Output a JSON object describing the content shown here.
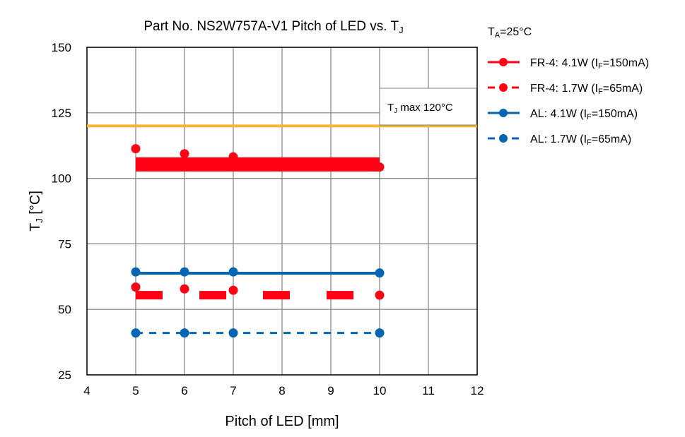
{
  "chart_data": {
    "type": "line",
    "title": {
      "main": "Part No. NS2W757A-V1 Pitch of LED vs. T",
      "sub": "J"
    },
    "xlabel": "Pitch of LED [mm]",
    "ylabel": {
      "main": "T",
      "sub": "J",
      "unit": " [°C]"
    },
    "xlim": [
      4,
      12
    ],
    "ylim": [
      25,
      150
    ],
    "xticks": [
      "4",
      "5",
      "6",
      "7",
      "8",
      "9",
      "10",
      "11",
      "12"
    ],
    "yticks": [
      "25",
      "50",
      "75",
      "100",
      "125",
      "150"
    ],
    "grid": true,
    "legend_position": "right",
    "ambient": {
      "main": "T",
      "sub": "A",
      "rest": "=25°C"
    },
    "tj_max": {
      "value": 120,
      "label_main": "T",
      "label_sub": "J",
      "label_rest": " max 120°C",
      "color": "#F5B731"
    },
    "series": [
      {
        "name": "FR-4: 4.1W (IF=150mA)",
        "legend_main": "FR-4: 4.1W (I",
        "legend_sub": "F",
        "legend_rest": "=150mA)",
        "color": "#FF0015",
        "dashed": false,
        "x": [
          5,
          6,
          7,
          10
        ],
        "y": [
          111.3,
          109.4,
          108.2,
          104.3
        ],
        "line_level": 105.3
      },
      {
        "name": "FR-4: 1.7W (IF=65mA)",
        "legend_main": "FR-4: 1.7W (I",
        "legend_sub": "F",
        "legend_rest": "=65mA)",
        "color": "#FF0015",
        "dashed": true,
        "x": [
          5,
          6,
          7,
          10
        ],
        "y": [
          58.5,
          57.8,
          57.3,
          55.4
        ],
        "line_level": 55.4
      },
      {
        "name": "AL: 4.1W (IF=150mA)",
        "legend_main": "AL: 4.1W (I",
        "legend_sub": "F",
        "legend_rest": "=150mA)",
        "color": "#0066B3",
        "dashed": false,
        "x": [
          5,
          6,
          7,
          10
        ],
        "y": [
          64.3,
          64.3,
          64.3,
          63.9
        ],
        "line_level": 63.8
      },
      {
        "name": "AL: 1.7W (IF=65mA)",
        "legend_main": "AL: 1.7W (I",
        "legend_sub": "F",
        "legend_rest": "=65mA)",
        "color": "#0066B3",
        "dashed": true,
        "x": [
          5,
          6,
          7,
          10
        ],
        "y": [
          41.0,
          41.0,
          41.0,
          41.0
        ],
        "line_level": 41.0
      }
    ]
  }
}
